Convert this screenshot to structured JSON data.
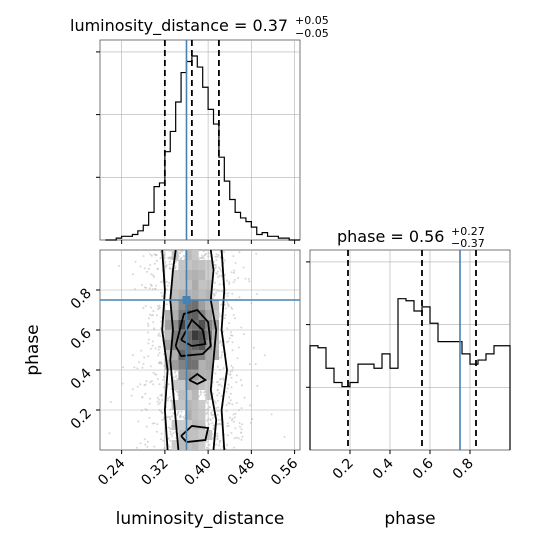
{
  "chart_data": [
    {
      "id": "luminosity_hist",
      "type": "histogram",
      "title": {
        "base": "luminosity_distance = 0.37",
        "sup": "+0.05",
        "sub": "−0.05"
      },
      "x_range": [
        0.2,
        0.57
      ],
      "y_range": [
        0,
        1.0
      ],
      "bins": [
        0.21,
        0.2325,
        0.255,
        0.2775,
        0.3,
        0.3225,
        0.345,
        0.3675,
        0.39,
        0.4125,
        0.435,
        0.4575,
        0.48,
        0.5025,
        0.525,
        0.5475,
        0.57
      ],
      "bin_edges": [
        0.21,
        0.22,
        0.23,
        0.24,
        0.25,
        0.26,
        0.27,
        0.28,
        0.29,
        0.3,
        0.31,
        0.32,
        0.33,
        0.34,
        0.35,
        0.36,
        0.37,
        0.38,
        0.39,
        0.4,
        0.41,
        0.42,
        0.43,
        0.44,
        0.45,
        0.46,
        0.47,
        0.48,
        0.49,
        0.5,
        0.51,
        0.52,
        0.53,
        0.54,
        0.55,
        0.56,
        0.57
      ],
      "counts": [
        0,
        0,
        0.01,
        0.02,
        0.02,
        0.03,
        0.05,
        0.08,
        0.15,
        0.29,
        0.31,
        0.48,
        0.59,
        0.75,
        0.91,
        0.97,
        1.0,
        0.94,
        0.83,
        0.71,
        0.63,
        0.45,
        0.32,
        0.22,
        0.15,
        0.12,
        0.1,
        0.07,
        0.03,
        0.04,
        0.02,
        0.02,
        0.01,
        0.01,
        0,
        0
      ],
      "quantile_lines": [
        0.32,
        0.37,
        0.42
      ],
      "truth_value": 0.36
    },
    {
      "id": "scatter_2d",
      "type": "scatter",
      "x_label": "luminosity_distance",
      "y_label": "phase",
      "x_range": [
        0.2,
        0.57
      ],
      "y_range": [
        0.0,
        1.0
      ],
      "x_ticks": [
        "0.24",
        "0.32",
        "0.40",
        "0.48",
        "0.56"
      ],
      "y_ticks": [
        "0.2",
        "0.4",
        "0.6",
        "0.8"
      ],
      "truth_point": [
        0.36,
        0.75
      ]
    },
    {
      "id": "phase_hist",
      "type": "histogram",
      "title": {
        "base": "phase = 0.56",
        "sup": "+0.27",
        "sub": "−0.37"
      },
      "x_label": "phase",
      "x_range": [
        0.0,
        1.0
      ],
      "y_range": [
        0,
        1.0
      ],
      "x_ticks": [
        "0.2",
        "0.4",
        "0.6",
        "0.8"
      ],
      "bin_edges": [
        0.0,
        0.04,
        0.08,
        0.12,
        0.16,
        0.2,
        0.24,
        0.28,
        0.32,
        0.36,
        0.4,
        0.44,
        0.48,
        0.52,
        0.56,
        0.6,
        0.64,
        0.68,
        0.72,
        0.76,
        0.8,
        0.84,
        0.88,
        0.92,
        0.96,
        1.0
      ],
      "counts": [
        0.51,
        0.5,
        0.4,
        0.33,
        0.31,
        0.33,
        0.42,
        0.42,
        0.4,
        0.47,
        0.4,
        0.74,
        0.73,
        0.68,
        0.7,
        0.62,
        0.53,
        0.53,
        0.53,
        0.47,
        0.42,
        0.44,
        0.47,
        0.51,
        0.51
      ],
      "quantile_lines": [
        0.19,
        0.56,
        0.83
      ],
      "truth_value": 0.75
    }
  ],
  "colors": {
    "truth": "#4682b4",
    "grid": "#b0b0b0",
    "hist_line": "#000000",
    "scatter_point": "#c8c8c8"
  }
}
